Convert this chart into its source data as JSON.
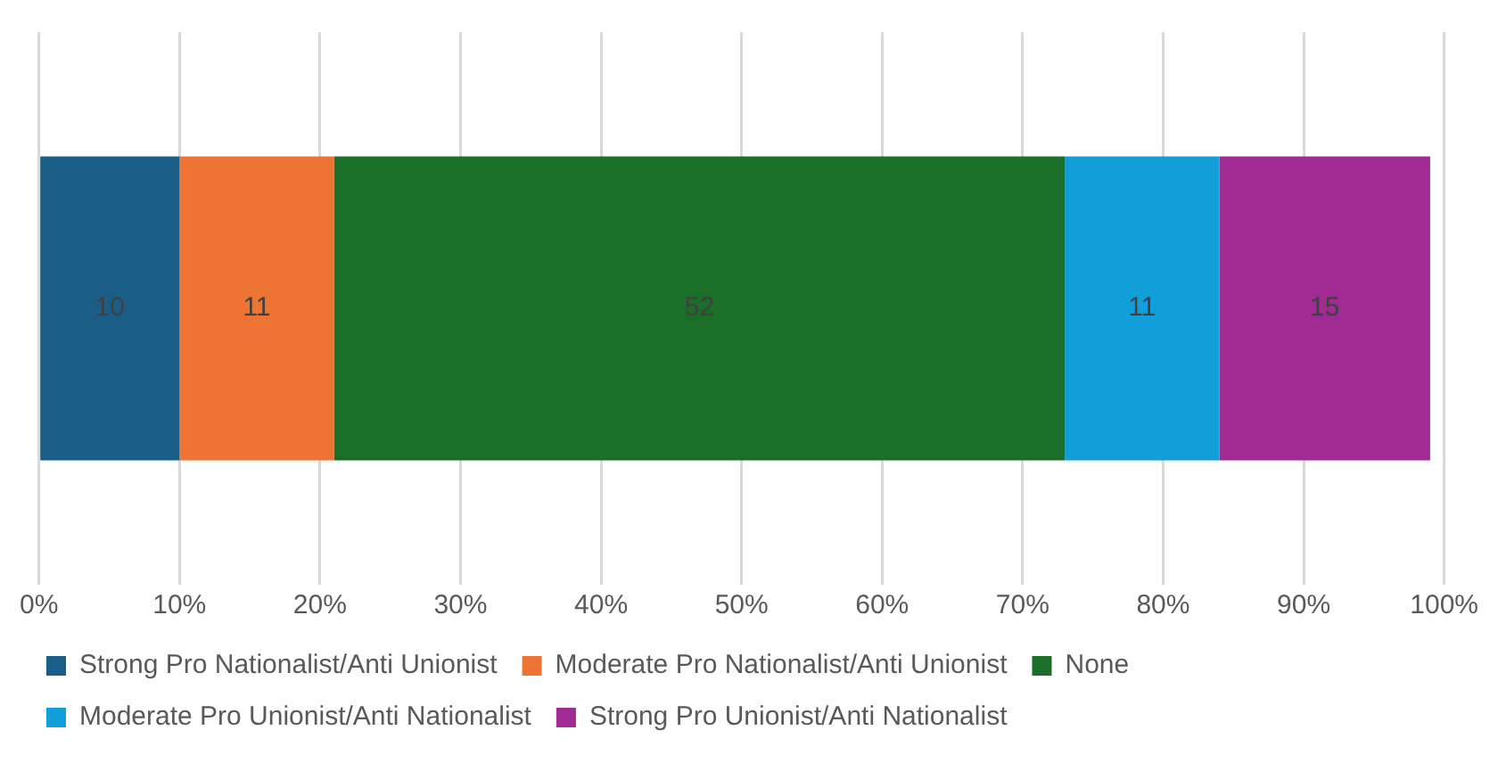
{
  "chart_data": {
    "type": "bar",
    "orientation": "horizontal",
    "stacked": true,
    "categories": [
      null
    ],
    "series": [
      {
        "name": "Strong Pro Nationalist/Anti Unionist",
        "color": "#1a5e87",
        "values": [
          10
        ]
      },
      {
        "name": "Moderate Pro Nationalist/Anti Unionist",
        "color": "#ed7433",
        "values": [
          11
        ]
      },
      {
        "name": "None",
        "color": "#1b6e27",
        "values": [
          52
        ]
      },
      {
        "name": "Moderate Pro Unionist/Anti Nationalist",
        "color": "#129fd9",
        "values": [
          11
        ]
      },
      {
        "name": "Strong Pro Unionist/Anti Nationalist",
        "color": "#a02c93",
        "values": [
          15
        ]
      }
    ],
    "xlim": [
      0,
      100
    ],
    "xticks": [
      {
        "value": 0,
        "label": "0%"
      },
      {
        "value": 10,
        "label": "10%"
      },
      {
        "value": 20,
        "label": "20%"
      },
      {
        "value": 30,
        "label": "30%"
      },
      {
        "value": 40,
        "label": "40%"
      },
      {
        "value": 50,
        "label": "50%"
      },
      {
        "value": 60,
        "label": "60%"
      },
      {
        "value": 70,
        "label": "70%"
      },
      {
        "value": 80,
        "label": "80%"
      },
      {
        "value": 90,
        "label": "90%"
      },
      {
        "value": 100,
        "label": "100%"
      }
    ],
    "grid": "x",
    "legend": "bottom",
    "tick_labels": "x",
    "data_labels": true
  }
}
